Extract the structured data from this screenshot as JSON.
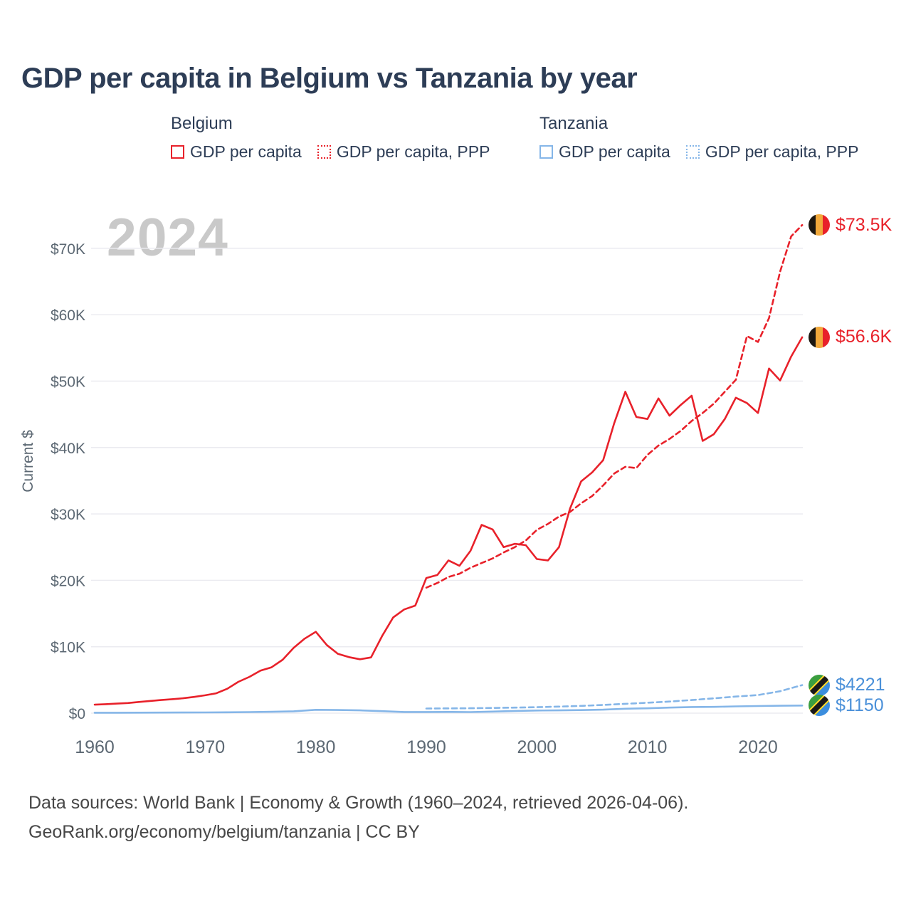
{
  "title": "GDP per capita in Belgium vs Tanzania by year",
  "watermark": "2024",
  "colors": {
    "belgium_line": "#e8212a",
    "tanzania_line": "#85b6e8",
    "tanzania_label_text": "#4a90d9",
    "title_text": "#2d3d56",
    "axis_text": "#5c6873",
    "gridline": "#ebebf0",
    "watermark_text": "#c9c9c9"
  },
  "legend": {
    "groups": [
      {
        "country": "Belgium",
        "items": [
          {
            "label": "GDP per capita",
            "style": "solid",
            "color": "#e8212a"
          },
          {
            "label": "GDP per capita, PPP",
            "style": "dotted",
            "color": "#e8212a"
          }
        ]
      },
      {
        "country": "Tanzania",
        "items": [
          {
            "label": "GDP per capita",
            "style": "solid",
            "color": "#85b6e8"
          },
          {
            "label": "GDP per capita, PPP",
            "style": "dotted",
            "color": "#85b6e8"
          }
        ]
      }
    ]
  },
  "end_labels": [
    {
      "text": "$73.5K",
      "flag": "belgium",
      "color": "#e8212a",
      "value": 73500
    },
    {
      "text": "$56.6K",
      "flag": "belgium",
      "color": "#e8212a",
      "value": 56600
    },
    {
      "text": "$4221",
      "flag": "tanzania",
      "color": "#4a90d9",
      "value": 4221
    },
    {
      "text": "$1150",
      "flag": "tanzania",
      "color": "#4a90d9",
      "value": 1150
    }
  ],
  "footer": {
    "line1": "Data sources: World Bank | Economy & Growth (1960–2024, retrieved 2026-04-06).",
    "line2": "GeoRank.org/economy/belgium/tanzania | CC BY"
  },
  "chart_data": {
    "type": "line",
    "title": "GDP per capita in Belgium vs Tanzania by year",
    "xlabel": "",
    "ylabel": "Current $",
    "xlim": [
      1958,
      2025
    ],
    "ylim": [
      0,
      75000
    ],
    "grid": "horizontal",
    "x_ticks": [
      1960,
      1970,
      1980,
      1990,
      2000,
      2010,
      2020
    ],
    "x_tick_labels": [
      "1960",
      "1970",
      "1980",
      "1990",
      "2000",
      "2010",
      "2020"
    ],
    "y_ticks": [
      0,
      10000,
      20000,
      30000,
      40000,
      50000,
      60000,
      70000
    ],
    "y_tick_labels": [
      "$0",
      "$10K",
      "$20K",
      "$30K",
      "$40K",
      "$50K",
      "$60K",
      "$70K"
    ],
    "series": [
      {
        "name": "Belgium GDP per capita",
        "color": "#e8212a",
        "style": "solid",
        "end_label": "$56.6K",
        "year_start": 1960,
        "year_step": 1,
        "values": [
          1274,
          1349,
          1434,
          1526,
          1684,
          1836,
          1969,
          2100,
          2243,
          2447,
          2690,
          2994,
          3677,
          4717,
          5464,
          6397,
          6898,
          8038,
          9828,
          11226,
          12246,
          10253,
          8942,
          8435,
          8111,
          8394,
          11621,
          14404,
          15617,
          16191,
          20350,
          20800,
          23000,
          22200,
          24450,
          28350,
          27660,
          25000,
          25500,
          25300,
          23200,
          23000,
          25000,
          30800,
          34900,
          36250,
          38100,
          43700,
          48400,
          44600,
          44300,
          47400,
          44800,
          46400,
          47800,
          41000,
          42000,
          44300,
          47500,
          46700,
          45200,
          51900,
          50100,
          53700,
          56600
        ]
      },
      {
        "name": "Belgium GDP per capita, PPP",
        "color": "#e8212a",
        "style": "dashed",
        "end_label": "$73.5K",
        "year_start": 1990,
        "year_step": 1,
        "values": [
          18900,
          19600,
          20500,
          21000,
          21900,
          22600,
          23300,
          24200,
          25000,
          26000,
          27600,
          28500,
          29600,
          30300,
          31600,
          32700,
          34300,
          36100,
          37100,
          36900,
          38900,
          40300,
          41300,
          42500,
          44000,
          45200,
          46600,
          48400,
          50200,
          56800,
          55900,
          59500,
          66500,
          71800,
          73500
        ]
      },
      {
        "name": "Tanzania GDP per capita",
        "color": "#85b6e8",
        "style": "solid",
        "end_label": "$1150",
        "year_start": 1960,
        "year_step": 2,
        "values": [
          60,
          65,
          72,
          82,
          92,
          105,
          125,
          165,
          200,
          280,
          500,
          470,
          420,
          300,
          170,
          175,
          185,
          165,
          240,
          330,
          400,
          420,
          460,
          530,
          660,
          730,
          840,
          920,
          940,
          1020,
          1070,
          1110,
          1150
        ]
      },
      {
        "name": "Tanzania GDP per capita, PPP",
        "color": "#85b6e8",
        "style": "dashed",
        "end_label": "$4221",
        "year_start": 1990,
        "year_step": 2,
        "values": [
          700,
          715,
          735,
          785,
          840,
          905,
          985,
          1090,
          1230,
          1400,
          1560,
          1750,
          1970,
          2230,
          2500,
          2720,
          3300,
          4221
        ]
      }
    ]
  }
}
